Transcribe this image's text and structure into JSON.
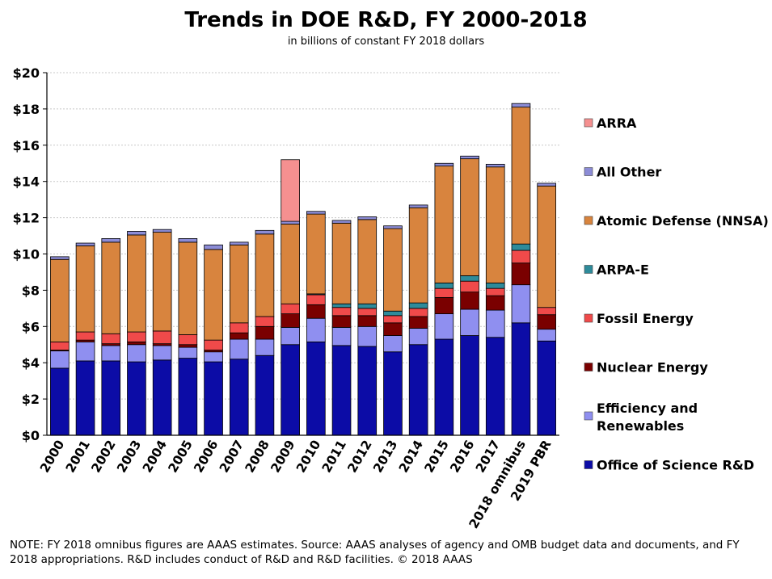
{
  "chart_data": {
    "type": "stacked-bar",
    "title": "Trends in DOE R&D, FY 2000-2018",
    "subtitle": "in billions of constant FY 2018 dollars",
    "ylim": [
      0,
      20
    ],
    "yticks": [
      0,
      2,
      4,
      6,
      8,
      10,
      12,
      14,
      16,
      18,
      20
    ],
    "ytick_labels": [
      "$0",
      "$2",
      "$4",
      "$6",
      "$8",
      "$10",
      "$12",
      "$14",
      "$16",
      "$18",
      "$20"
    ],
    "grid": true,
    "legend_position": "right",
    "categories": [
      "2000",
      "2001",
      "2002",
      "2003",
      "2004",
      "2005",
      "2006",
      "2007",
      "2008",
      "2009",
      "2010",
      "2011",
      "2012",
      "2013",
      "2014",
      "2015",
      "2016",
      "2017",
      "2018 omnibus",
      "2019 PBR"
    ],
    "series": [
      {
        "name": "Office of Science R&D",
        "color": "#0c0ca6",
        "values": [
          3.7,
          4.1,
          4.1,
          4.05,
          4.15,
          4.25,
          4.05,
          4.2,
          4.4,
          5.0,
          5.15,
          4.95,
          4.9,
          4.6,
          5.0,
          5.3,
          5.5,
          5.4,
          6.2,
          5.2
        ]
      },
      {
        "name": "Efficiency and Renewables",
        "color": "#8f8ff0",
        "values": [
          0.95,
          1.05,
          0.85,
          0.95,
          0.8,
          0.6,
          0.55,
          1.1,
          0.9,
          0.95,
          1.3,
          1.0,
          1.1,
          0.9,
          0.9,
          1.4,
          1.45,
          1.5,
          2.1,
          0.65
        ]
      },
      {
        "name": "Nuclear Energy",
        "color": "#7a0000",
        "values": [
          0.05,
          0.1,
          0.1,
          0.15,
          0.1,
          0.15,
          0.1,
          0.35,
          0.7,
          0.75,
          0.75,
          0.65,
          0.6,
          0.7,
          0.65,
          0.9,
          0.95,
          0.8,
          1.2,
          0.8
        ]
      },
      {
        "name": "Fossil Energy",
        "color": "#f04a4a",
        "values": [
          0.45,
          0.45,
          0.55,
          0.55,
          0.7,
          0.55,
          0.55,
          0.55,
          0.55,
          0.55,
          0.55,
          0.45,
          0.4,
          0.4,
          0.45,
          0.5,
          0.6,
          0.4,
          0.7,
          0.4
        ]
      },
      {
        "name": "ARPA-E",
        "color": "#2e8b9a",
        "values": [
          0,
          0,
          0,
          0,
          0,
          0,
          0,
          0,
          0,
          0,
          0.05,
          0.2,
          0.25,
          0.25,
          0.3,
          0.3,
          0.3,
          0.3,
          0.35,
          0
        ]
      },
      {
        "name": "Atomic Defense (NNSA)",
        "color": "#d8843e",
        "values": [
          4.55,
          4.75,
          5.05,
          5.35,
          5.45,
          5.1,
          5.0,
          4.3,
          4.55,
          4.4,
          4.4,
          4.45,
          4.65,
          4.55,
          5.25,
          6.45,
          6.45,
          6.4,
          7.55,
          6.7
        ]
      },
      {
        "name": "All Other",
        "color": "#8c8cd6",
        "values": [
          0.15,
          0.15,
          0.2,
          0.2,
          0.15,
          0.2,
          0.25,
          0.15,
          0.2,
          0.15,
          0.15,
          0.15,
          0.15,
          0.15,
          0.15,
          0.15,
          0.15,
          0.15,
          0.2,
          0.15
        ]
      },
      {
        "name": "ARRA",
        "color": "#f59090",
        "values": [
          0,
          0,
          0,
          0,
          0,
          0,
          0,
          0,
          0,
          3.4,
          0,
          0,
          0,
          0,
          0,
          0,
          0,
          0,
          0,
          0
        ]
      }
    ],
    "legend_order": [
      {
        "label": "ARRA",
        "color": "#f59090"
      },
      {
        "label": "All Other",
        "color": "#8c8cd6"
      },
      {
        "label": "Atomic Defense (NNSA)",
        "color": "#d8843e"
      },
      {
        "label": "ARPA-E",
        "color": "#2e8b9a"
      },
      {
        "label": "Fossil Energy",
        "color": "#f04a4a"
      },
      {
        "label": "Nuclear Energy",
        "color": "#7a0000"
      },
      {
        "label": "Efficiency and Renewables",
        "color": "#8f8ff0"
      },
      {
        "label": "Office of Science R&D",
        "color": "#0c0ca6"
      }
    ]
  },
  "note": "NOTE: FY 2018 omnibus figures are AAAS estimates. Source: AAAS analyses of agency and OMB budget data and documents, and FY 2018 appropriations. R&D includes conduct of R&D and R&D facilities. © 2018 AAAS"
}
